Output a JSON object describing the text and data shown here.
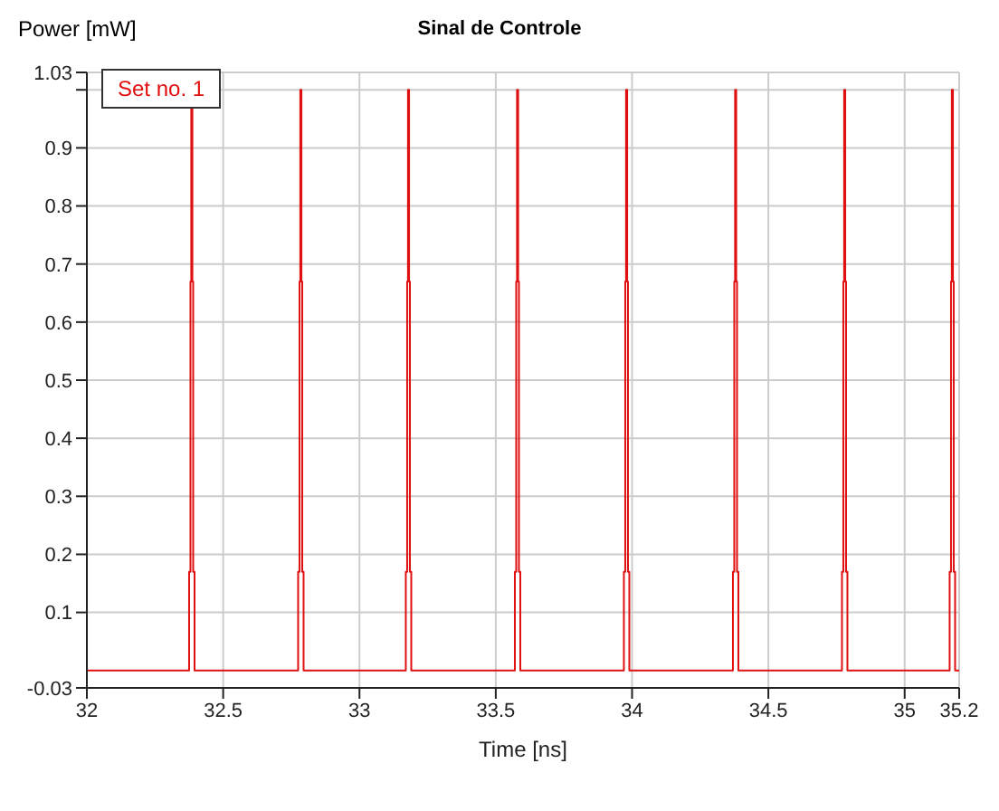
{
  "chart_data": {
    "type": "line",
    "title": "Sinal de Controle",
    "xlabel": "Time [ns]",
    "ylabel": "Power [mW]",
    "x": [
      32,
      32.375,
      32.375,
      32.38,
      32.38,
      32.383,
      32.383,
      32.387,
      32.387,
      32.39,
      32.39,
      32.395,
      32.395,
      32.775,
      32.775,
      32.78,
      32.78,
      32.783,
      32.783,
      32.787,
      32.787,
      32.79,
      32.79,
      32.795,
      32.795,
      33.17,
      33.17,
      33.175,
      33.175,
      33.178,
      33.178,
      33.182,
      33.182,
      33.185,
      33.185,
      33.19,
      33.19,
      33.57,
      33.57,
      33.575,
      33.575,
      33.578,
      33.578,
      33.582,
      33.582,
      33.585,
      33.585,
      33.59,
      33.59,
      33.97,
      33.97,
      33.975,
      33.975,
      33.978,
      33.978,
      33.982,
      33.982,
      33.985,
      33.985,
      33.99,
      33.99,
      34.37,
      34.37,
      34.375,
      34.375,
      34.378,
      34.378,
      34.382,
      34.382,
      34.385,
      34.385,
      34.39,
      34.39,
      34.77,
      34.77,
      34.775,
      34.775,
      34.778,
      34.778,
      34.782,
      34.782,
      34.785,
      34.785,
      34.79,
      34.79,
      35.165,
      35.165,
      35.17,
      35.17,
      35.173,
      35.173,
      35.177,
      35.177,
      35.18,
      35.18,
      35.185,
      35.185,
      35.2
    ],
    "series": [
      {
        "name": "Set no. 1",
        "color": "#e01010",
        "values": [
          0,
          0,
          0.17,
          0.17,
          0.67,
          0.67,
          1,
          1,
          0.67,
          0.67,
          0.17,
          0.17,
          0,
          0,
          0.17,
          0.17,
          0.67,
          0.67,
          1,
          1,
          0.67,
          0.67,
          0.17,
          0.17,
          0,
          0,
          0.17,
          0.17,
          0.67,
          0.67,
          1,
          1,
          0.67,
          0.67,
          0.17,
          0.17,
          0,
          0,
          0.17,
          0.17,
          0.67,
          0.67,
          1,
          1,
          0.67,
          0.67,
          0.17,
          0.17,
          0,
          0,
          0.17,
          0.17,
          0.67,
          0.67,
          1,
          1,
          0.67,
          0.67,
          0.17,
          0.17,
          0,
          0,
          0.17,
          0.17,
          0.67,
          0.67,
          1,
          1,
          0.67,
          0.67,
          0.17,
          0.17,
          0,
          0,
          0.17,
          0.17,
          0.67,
          0.67,
          1,
          1,
          0.67,
          0.67,
          0.17,
          0.17,
          0,
          0,
          0.17,
          0.17,
          0.67,
          0.67,
          1,
          1,
          0.67,
          0.67,
          0.17,
          0.17,
          0,
          0
        ]
      }
    ],
    "xlim": [
      32,
      35.2
    ],
    "xticks": [
      32,
      32.5,
      33,
      33.5,
      34,
      34.5,
      35,
      35.2
    ],
    "ylim": [
      -0.03,
      1.03
    ],
    "yticks": [
      -0.03,
      0.1,
      0.2,
      0.3,
      0.4,
      0.5,
      0.6,
      0.7,
      0.8,
      0.9,
      {
        "value": 1,
        "label": null
      },
      1.03
    ],
    "grid": true,
    "legend": "top left",
    "marker": "none",
    "line_style": "solid"
  }
}
